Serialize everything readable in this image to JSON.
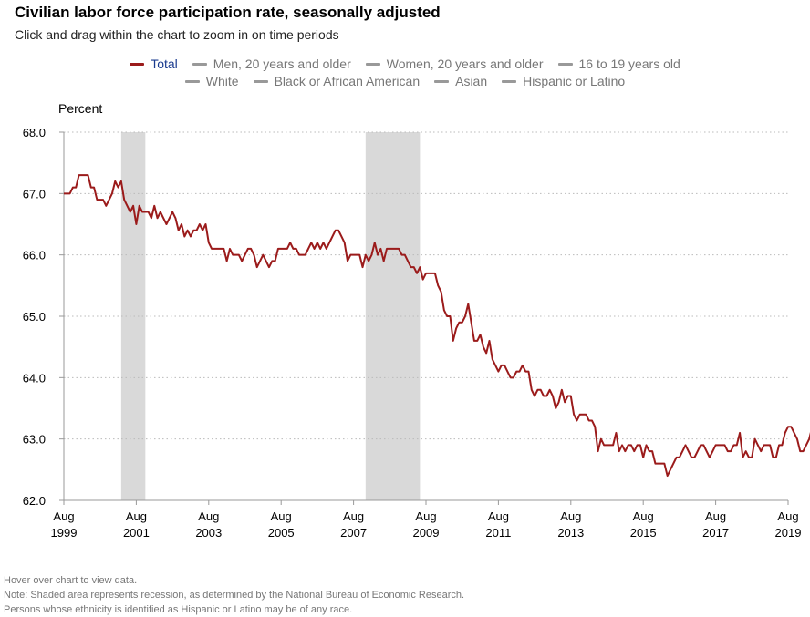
{
  "header": {
    "title": "Civilian labor force participation rate, seasonally adjusted",
    "subtitle": "Click and drag within the chart to zoom in on time periods"
  },
  "legend": {
    "row1": [
      {
        "label": "Total",
        "color": "#9b1b1b",
        "active": true
      },
      {
        "label": "Men, 20 years and older",
        "color": "#999999",
        "active": false
      },
      {
        "label": "Women, 20 years and older",
        "color": "#999999",
        "active": false
      },
      {
        "label": "16 to 19 years old",
        "color": "#999999",
        "active": false
      }
    ],
    "row2": [
      {
        "label": "White",
        "color": "#999999",
        "active": false
      },
      {
        "label": "Black or African American",
        "color": "#999999",
        "active": false
      },
      {
        "label": "Asian",
        "color": "#999999",
        "active": false
      },
      {
        "label": "Hispanic or Latino",
        "color": "#999999",
        "active": false
      }
    ]
  },
  "notes": [
    "Hover over chart to view data.",
    "Note: Shaded area represents recession, as determined by the National Bureau of Economic Research.",
    "Persons whose ethnicity is identified as Hispanic or Latino may be of any race."
  ],
  "chart_data": {
    "type": "line",
    "ylabel": "Percent",
    "ylim": [
      62.0,
      68.0
    ],
    "yticks": [
      "68.0",
      "67.0",
      "66.0",
      "65.0",
      "64.0",
      "63.0",
      "62.0"
    ],
    "xlim": [
      "1999-08",
      "2019-08"
    ],
    "xticks": [
      {
        "month": "Aug",
        "year": "1999"
      },
      {
        "month": "Aug",
        "year": "2001"
      },
      {
        "month": "Aug",
        "year": "2003"
      },
      {
        "month": "Aug",
        "year": "2005"
      },
      {
        "month": "Aug",
        "year": "2007"
      },
      {
        "month": "Aug",
        "year": "2009"
      },
      {
        "month": "Aug",
        "year": "2011"
      },
      {
        "month": "Aug",
        "year": "2013"
      },
      {
        "month": "Aug",
        "year": "2015"
      },
      {
        "month": "Aug",
        "year": "2017"
      },
      {
        "month": "Aug",
        "year": "2019"
      }
    ],
    "grid": "horizontal dotted",
    "line_color": "#9b1b1b",
    "recession_color": "#d9d9d9",
    "recessions": [
      {
        "start": "2001-03",
        "end": "2001-11"
      },
      {
        "start": "2007-12",
        "end": "2009-06"
      }
    ],
    "series": [
      {
        "name": "Total",
        "start": "1999-08",
        "values": [
          67.0,
          67.0,
          67.0,
          67.1,
          67.1,
          67.3,
          67.3,
          67.3,
          67.3,
          67.1,
          67.1,
          66.9,
          66.9,
          66.9,
          66.8,
          66.9,
          67.0,
          67.2,
          67.1,
          67.2,
          66.9,
          66.8,
          66.7,
          66.8,
          66.5,
          66.8,
          66.7,
          66.7,
          66.7,
          66.6,
          66.8,
          66.6,
          66.7,
          66.6,
          66.5,
          66.6,
          66.7,
          66.6,
          66.4,
          66.5,
          66.3,
          66.4,
          66.3,
          66.4,
          66.4,
          66.5,
          66.4,
          66.5,
          66.2,
          66.1,
          66.1,
          66.1,
          66.1,
          66.1,
          65.9,
          66.1,
          66.0,
          66.0,
          66.0,
          65.9,
          66.0,
          66.1,
          66.1,
          66.0,
          65.8,
          65.9,
          66.0,
          65.9,
          65.8,
          65.9,
          65.9,
          66.1,
          66.1,
          66.1,
          66.1,
          66.2,
          66.1,
          66.1,
          66.0,
          66.0,
          66.0,
          66.1,
          66.2,
          66.1,
          66.2,
          66.1,
          66.2,
          66.1,
          66.2,
          66.3,
          66.4,
          66.4,
          66.3,
          66.2,
          65.9,
          66.0,
          66.0,
          66.0,
          66.0,
          65.8,
          66.0,
          65.9,
          66.0,
          66.2,
          66.0,
          66.1,
          65.9,
          66.1,
          66.1,
          66.1,
          66.1,
          66.1,
          66.0,
          66.0,
          65.9,
          65.8,
          65.8,
          65.7,
          65.8,
          65.6,
          65.7,
          65.7,
          65.7,
          65.7,
          65.5,
          65.4,
          65.1,
          65.0,
          65.0,
          64.6,
          64.8,
          64.9,
          64.9,
          65.0,
          65.2,
          64.9,
          64.6,
          64.6,
          64.7,
          64.5,
          64.4,
          64.6,
          64.3,
          64.2,
          64.1,
          64.2,
          64.2,
          64.1,
          64.0,
          64.0,
          64.1,
          64.1,
          64.2,
          64.1,
          64.1,
          63.8,
          63.7,
          63.8,
          63.8,
          63.7,
          63.7,
          63.8,
          63.7,
          63.5,
          63.6,
          63.8,
          63.6,
          63.7,
          63.7,
          63.4,
          63.3,
          63.4,
          63.4,
          63.4,
          63.3,
          63.3,
          63.2,
          62.8,
          63.0,
          62.9,
          62.9,
          62.9,
          62.9,
          63.1,
          62.8,
          62.9,
          62.8,
          62.9,
          62.9,
          62.8,
          62.9,
          62.9,
          62.7,
          62.9,
          62.8,
          62.8,
          62.6,
          62.6,
          62.6,
          62.6,
          62.4,
          62.5,
          62.6,
          62.7,
          62.7,
          62.8,
          62.9,
          62.8,
          62.7,
          62.7,
          62.8,
          62.9,
          62.9,
          62.8,
          62.7,
          62.8,
          62.9,
          62.9,
          62.9,
          62.9,
          62.8,
          62.8,
          62.9,
          62.9,
          63.1,
          62.7,
          62.8,
          62.7,
          62.7,
          63.0,
          62.9,
          62.8,
          62.9,
          62.9,
          62.9,
          62.7,
          62.7,
          62.9,
          62.9,
          63.1,
          63.2,
          63.2,
          63.1,
          63.0,
          62.8,
          62.8,
          62.9,
          63.0,
          63.2
        ]
      }
    ]
  }
}
